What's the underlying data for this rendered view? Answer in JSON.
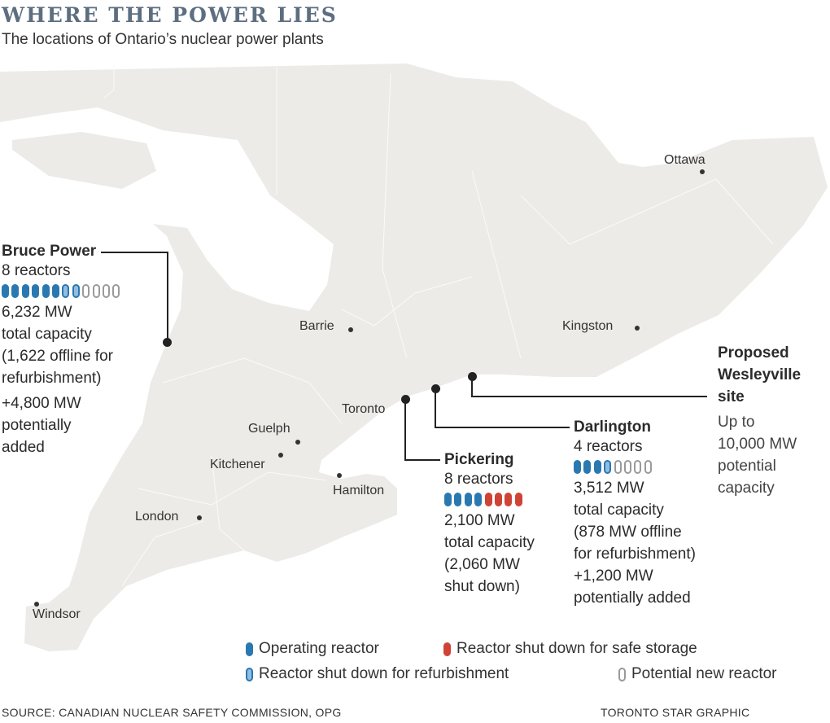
{
  "header": {
    "title": "WHERE THE POWER LIES",
    "subtitle": "The locations of Ontario’s nuclear power plants"
  },
  "colors": {
    "land": "#edebe8",
    "water": "#ffffff",
    "title": "#5d6e80",
    "operating": "#2a78b0",
    "shutdown": "#cf4336",
    "refurbishment": "#92bde2",
    "potential": "#9a9a9a"
  },
  "cities": [
    "Ottawa",
    "Barrie",
    "Kingston",
    "Toronto",
    "Guelph",
    "Kitchener",
    "Hamilton",
    "London",
    "Windsor"
  ],
  "plants": {
    "bruce": {
      "name": "Bruce Power",
      "reactors": "8 reactors",
      "reactor_icons": [
        "operating",
        "operating",
        "operating",
        "operating",
        "operating",
        "operating",
        "refurbishment",
        "refurbishment",
        "potential",
        "potential",
        "potential",
        "potential"
      ],
      "lines": [
        "6,232 MW",
        "total capacity",
        "(1,622 offline for",
        "refurbishment)"
      ],
      "extra": [
        "+4,800 MW",
        "potentially",
        "added"
      ]
    },
    "pickering": {
      "name": "Pickering",
      "reactors": "8 reactors",
      "reactor_icons": [
        "operating",
        "operating",
        "operating",
        "operating",
        "shutdown",
        "shutdown",
        "shutdown",
        "shutdown"
      ],
      "lines": [
        "2,100 MW",
        "total capacity",
        "(2,060 MW",
        "shut down)"
      ]
    },
    "darlington": {
      "name": "Darlington",
      "reactors": "4 reactors",
      "reactor_icons": [
        "operating",
        "operating",
        "operating",
        "refurbishment",
        "potential",
        "potential",
        "potential",
        "potential"
      ],
      "lines": [
        "3,512 MW",
        "total capacity",
        "(878 MW offline",
        "for refurbishment)"
      ],
      "extra": [
        "+1,200 MW",
        "potentially added"
      ]
    },
    "wesleyville": {
      "name": [
        "Proposed",
        "Wesleyville",
        "site"
      ],
      "lines": [
        "Up to",
        "10,000 MW",
        "potential",
        "capacity"
      ]
    }
  },
  "legend": [
    {
      "type": "operating",
      "label": "Operating reactor"
    },
    {
      "type": "shutdown",
      "label": "Reactor shut down for safe storage"
    },
    {
      "type": "refurbishment",
      "label": "Reactor shut down for refurbishment"
    },
    {
      "type": "potential",
      "label": "Potential new reactor"
    }
  ],
  "footer": {
    "source": "SOURCE: CANADIAN NUCLEAR SAFETY COMMISSION, OPG",
    "credit": "TORONTO STAR GRAPHIC"
  }
}
